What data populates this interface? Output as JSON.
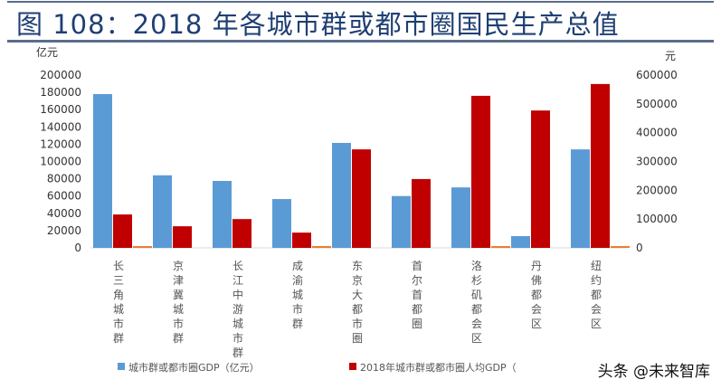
{
  "title": "图 108：2018 年各城市群或都市圈国民生产总值",
  "watermark": "头条 @未来智库",
  "chart_data": {
    "type": "bar",
    "categories": [
      "长三角城市群",
      "京津冀城市群",
      "长江中游城市群",
      "成渝城市群",
      "东京大都市圈",
      "首尔首都圈",
      "洛杉矶都会区",
      "丹佛都会区",
      "纽约都会区"
    ],
    "left_unit": "亿元",
    "right_unit": "元",
    "left_ylim": [
      0,
      200000
    ],
    "right_ylim": [
      0,
      600000
    ],
    "left_ticks": [
      "0",
      "20000",
      "40000",
      "60000",
      "80000",
      "100000",
      "120000",
      "140000",
      "160000",
      "180000",
      "200000"
    ],
    "right_ticks": [
      "0",
      "100000",
      "200000",
      "300000",
      "400000",
      "500000",
      "600000"
    ],
    "grid": false,
    "legend_position": "bottom",
    "series": [
      {
        "name": "城市群或都市圈GDP（亿元）",
        "axis": "left",
        "color": "#5b9bd5",
        "values": [
          178000,
          84000,
          77500,
          56500,
          121500,
          60000,
          70000,
          13600,
          114000
        ]
      },
      {
        "name": "2018年城市群或都市圈人均GDP（",
        "axis": "right",
        "color": "#c00000",
        "values": [
          116000,
          75000,
          100000,
          53000,
          342000,
          239000,
          528000,
          477000,
          569000
        ]
      },
      {
        "axis": "right",
        "color": "#ed7d31",
        "values": [
          2000,
          0,
          0,
          2000,
          0,
          0,
          2000,
          0,
          2000
        ]
      }
    ]
  }
}
